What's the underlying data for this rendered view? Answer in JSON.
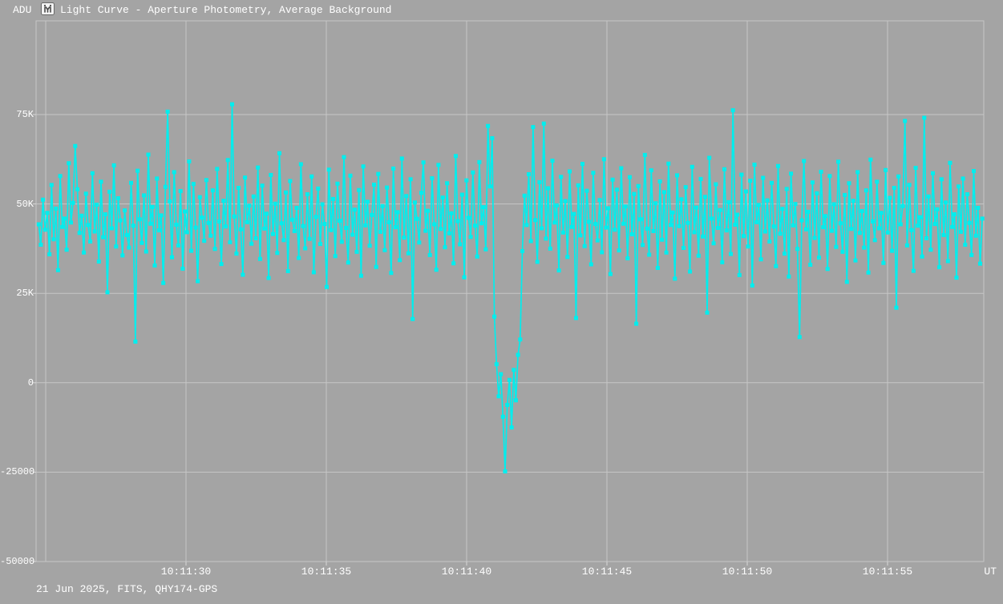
{
  "colors": {
    "background": "#a4a4a4",
    "grid": "#c6c6c6",
    "tick": "#d8d8d8",
    "text": "#ffffff",
    "series": "#00eeee"
  },
  "footer": {
    "info": "21 Jun 2025, FITS, QHY174-GPS"
  },
  "chart_data": {
    "type": "line",
    "title": "Light Curve - Aperture Photometry, Average Background",
    "xlabel": "UT",
    "ylabel": "ADU",
    "grid": true,
    "legend": "none",
    "marker": "square",
    "ylim": [
      -50000,
      101000
    ],
    "y_axis": {
      "unit_label": "ADU",
      "tick_labels": [
        "75K",
        "50K",
        "25K",
        "0",
        "-25000",
        "-50000"
      ],
      "tick_values": [
        75000,
        50000,
        25000,
        0,
        -25000,
        -50000
      ]
    },
    "x_axis": {
      "unit_label": "UT",
      "time_base": "10:11:00",
      "tick_labels": [
        "10:11:30",
        "10:11:35",
        "10:11:40",
        "10:11:45",
        "10:11:50",
        "10:11:55"
      ],
      "tick_seconds": [
        30,
        35,
        40,
        45,
        50,
        55
      ],
      "gridline_seconds": [
        25,
        30,
        35,
        40,
        45,
        50,
        55
      ],
      "xlim_seconds": [
        24.66,
        58.43
      ]
    },
    "series": [
      {
        "name": "aperture-photometry-adu",
        "color": "#00eeee",
        "t0_seconds": 24.75,
        "dt_seconds": 0.0766,
        "values": [
          44300,
          38600,
          51200,
          42800,
          47500,
          35900,
          55300,
          40100,
          48700,
          31500,
          57800,
          43600,
          45900,
          37200,
          61400,
          44800,
          50300,
          66200,
          54100,
          41900,
          46700,
          36400,
          52900,
          44100,
          39500,
          58600,
          42300,
          49800,
          33900,
          56200,
          40700,
          47100,
          25300,
          53400,
          43200,
          60800,
          38100,
          51600,
          45400,
          35600,
          48200,
          41300,
          37800,
          55900,
          43900,
          11500,
          59300,
          45700,
          39100,
          52400,
          36700,
          63800,
          44500,
          49200,
          32800,
          57100,
          42600,
          46800,
          27900,
          54800,
          75800,
          50700,
          35100,
          58900,
          44200,
          38400,
          53600,
          31900,
          47900,
          42100,
          61900,
          36900,
          55600,
          43400,
          28400,
          51900,
          46200,
          39700,
          56700,
          44700,
          41100,
          53800,
          37400,
          59800,
          45100,
          33200,
          50900,
          43700,
          62300,
          39300,
          77900,
          46500,
          36100,
          54500,
          42900,
          30200,
          57400,
          44900,
          49500,
          38900,
          52100,
          40400,
          60200,
          34600,
          55100,
          43100,
          47300,
          29300,
          58100,
          41600,
          50100,
          36300,
          64200,
          44600,
          39900,
          53200,
          31200,
          56400,
          45600,
          42400,
          48900,
          34900,
          61100,
          43800,
          37600,
          52700,
          40200,
          57700,
          30900,
          46400,
          54300,
          38800,
          49900,
          44400,
          26800,
          59600,
          42700,
          51400,
          35400,
          55700,
          45300,
          39400,
          63100,
          43300,
          33600,
          57900,
          41400,
          48400,
          36600,
          53900,
          29900,
          60500,
          44000,
          50600,
          38300,
          46900,
          55400,
          32400,
          58400,
          42200,
          49400,
          37100,
          54600,
          44900,
          30700,
          59900,
          43500,
          47700,
          34300,
          62700,
          40600,
          52200,
          36200,
          56900,
          17800,
          50400,
          45800,
          39200,
          53100,
          61600,
          42500,
          48100,
          35700,
          57200,
          44300,
          31600,
          60900,
          43000,
          51800,
          37900,
          55800,
          41800,
          47400,
          33400,
          63400,
          45200,
          38700,
          52600,
          29500,
          56600,
          46100,
          40800,
          58800,
          43900,
          35300,
          61700,
          44600,
          49100,
          37300,
          71800,
          54900,
          68400,
          18500,
          5200,
          -3800,
          2400,
          -9500,
          -24800,
          -6200,
          800,
          -12500,
          3600,
          -4900,
          7800,
          12100,
          36800,
          52300,
          44100,
          58300,
          39600,
          71500,
          45500,
          33800,
          56100,
          43200,
          72500,
          40300,
          54400,
          37500,
          62100,
          44800,
          49600,
          31400,
          57600,
          42000,
          50800,
          35200,
          59100,
          43600,
          47200,
          18100,
          55200,
          41200,
          61200,
          38200,
          53700,
          45000,
          33100,
          58700,
          44400,
          39800,
          51100,
          36500,
          62500,
          43400,
          48800,
          30400,
          56800,
          42800,
          54000,
          37000,
          60000,
          44500,
          49300,
          34800,
          57500,
          41500,
          52800,
          16500,
          55000,
          45700,
          38500,
          63700,
          43100,
          35800,
          59400,
          42400,
          50200,
          32100,
          56300,
          40000,
          53300,
          36400,
          61300,
          44100,
          47600,
          29100,
          58000,
          43800,
          51300,
          37700,
          54700,
          44700,
          31100,
          60400,
          42100,
          49000,
          35500,
          57000,
          40900,
          52000,
          19600,
          62900,
          45900,
          39000,
          55500,
          43300,
          48300,
          33700,
          59700,
          42600,
          50500,
          36000,
          76200,
          44200,
          47000,
          30100,
          58200,
          41000,
          53500,
          38100,
          56500,
          27200,
          61000,
          44900,
          49700,
          34500,
          57300,
          42300,
          51000,
          39500,
          55900,
          43700,
          32600,
          60600,
          41700,
          48600,
          36100,
          54200,
          29700,
          58500,
          44000,
          50000,
          37400,
          12800,
          45400,
          62000,
          42900,
          47800,
          33000,
          56000,
          40500,
          53000,
          35000,
          59000,
          43500,
          46600,
          31800,
          57800,
          42500,
          49900,
          38000,
          61800,
          44600,
          36600,
          52500,
          28200,
          55800,
          43000,
          50900,
          34200,
          58900,
          41900,
          48000,
          37800,
          53800,
          30800,
          62400,
          45100,
          39900,
          56200,
          43200,
          47500,
          33500,
          59500,
          42000,
          51700,
          36900,
          54500,
          21000,
          57700,
          44300,
          49400,
          73200,
          38400,
          55300,
          42700,
          31300,
          60100,
          43900,
          46300,
          35300,
          74100,
          40400,
          52100,
          37200,
          58600,
          44400,
          48500,
          32300,
          56900,
          41300,
          50400,
          34000,
          61500,
          43600,
          47100,
          29400,
          54900,
          42200,
          57100,
          38600,
          52700,
          44700,
          35700,
          59200,
          41100,
          48900,
          33300,
          45900
        ]
      }
    ]
  }
}
